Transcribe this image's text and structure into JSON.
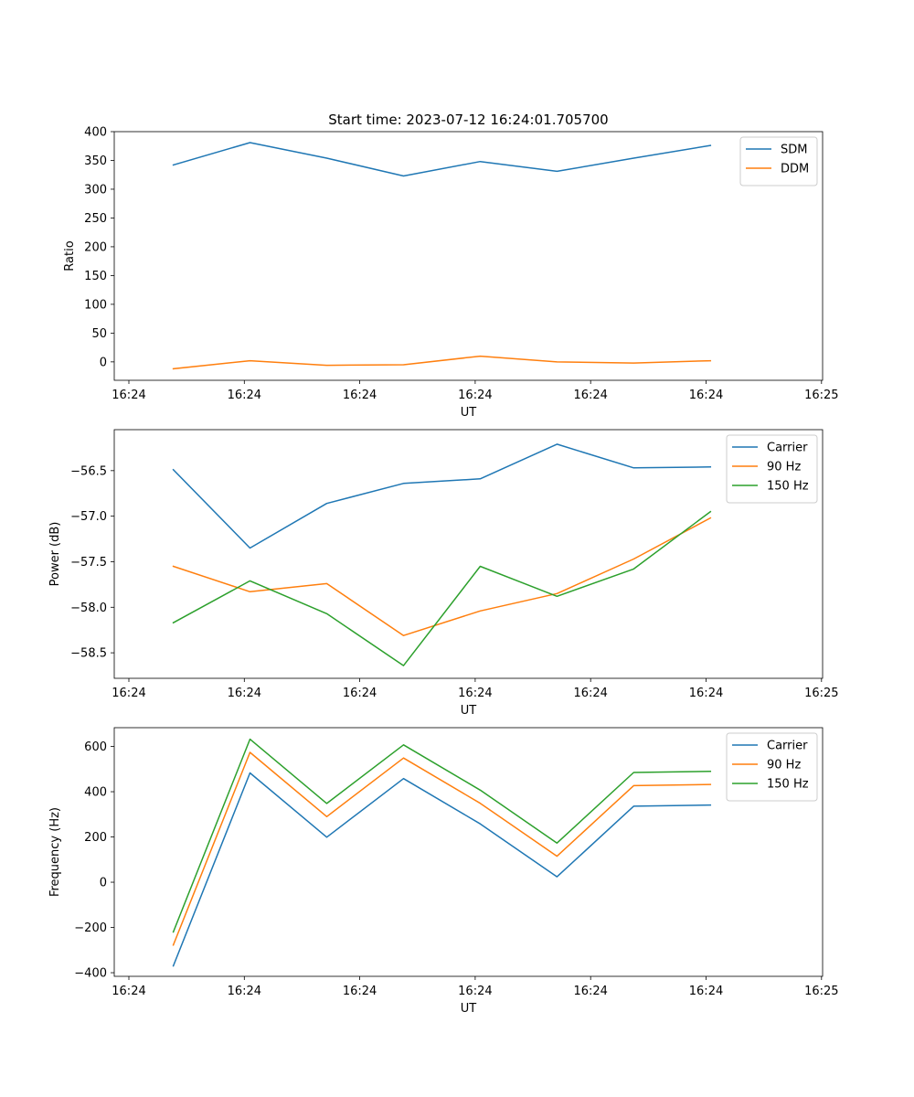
{
  "figure": {
    "title": "Start time: 2023-07-12 16:24:01.705700"
  },
  "chart_data": [
    {
      "type": "line",
      "ylabel": "Ratio",
      "xlabel": "UT",
      "x_ticks": [
        "16:24",
        "16:24",
        "16:24",
        "16:24",
        "16:24",
        "16:24",
        "16:25"
      ],
      "xlim": [
        -0.5,
        5.5
      ],
      "ylim": [
        -32,
        400
      ],
      "y_ticks": [
        0,
        50,
        100,
        150,
        200,
        250,
        300,
        350,
        400
      ],
      "y_tick_labels": [
        "0",
        "50",
        "100",
        "150",
        "200",
        "250",
        "300",
        "350",
        "400"
      ],
      "x": [
        0,
        0.65,
        1.3,
        1.95,
        2.6,
        3.25,
        3.9,
        4.55
      ],
      "series": [
        {
          "name": "SDM",
          "color": "#1f77b4",
          "values": [
            342,
            381,
            354,
            323,
            348,
            331,
            354,
            376
          ]
        },
        {
          "name": "DDM",
          "color": "#ff7f0e",
          "values": [
            -12,
            2,
            -6,
            -5,
            10,
            0,
            -2,
            2
          ]
        }
      ],
      "legend": "top-right"
    },
    {
      "type": "line",
      "ylabel": "Power (dB)",
      "xlabel": "UT",
      "x_ticks": [
        "16:24",
        "16:24",
        "16:24",
        "16:24",
        "16:24",
        "16:24",
        "16:25"
      ],
      "xlim": [
        -0.5,
        5.5
      ],
      "ylim": [
        -58.78,
        -56.05
      ],
      "y_ticks": [
        -58.5,
        -58.0,
        -57.5,
        -57.0,
        -56.5
      ],
      "y_tick_labels": [
        "−58.5",
        "−58.0",
        "−57.5",
        "−57.0",
        "−56.5"
      ],
      "x": [
        0,
        0.65,
        1.3,
        1.95,
        2.6,
        3.25,
        3.9,
        4.55
      ],
      "series": [
        {
          "name": "Carrier",
          "color": "#1f77b4",
          "values": [
            -56.49,
            -57.35,
            -56.86,
            -56.64,
            -56.59,
            -56.21,
            -56.47,
            -56.46
          ]
        },
        {
          "name": "90 Hz",
          "color": "#ff7f0e",
          "values": [
            -57.55,
            -57.83,
            -57.74,
            -58.31,
            -58.04,
            -57.85,
            -57.47,
            -57.02
          ]
        },
        {
          "name": "150 Hz",
          "color": "#2ca02c",
          "values": [
            -58.17,
            -57.71,
            -58.07,
            -58.64,
            -57.55,
            -57.88,
            -57.58,
            -56.95
          ]
        }
      ],
      "legend": "top-right"
    },
    {
      "type": "line",
      "ylabel": "Frequency (Hz)",
      "xlabel": "UT",
      "x_ticks": [
        "16:24",
        "16:24",
        "16:24",
        "16:24",
        "16:24",
        "16:24",
        "16:25"
      ],
      "xlim": [
        -0.5,
        5.5
      ],
      "ylim": [
        -416,
        683
      ],
      "y_ticks": [
        -400,
        -200,
        0,
        200,
        400,
        600
      ],
      "y_tick_labels": [
        "−400",
        "−200",
        "0",
        "200",
        "400",
        "600"
      ],
      "x": [
        0,
        0.65,
        1.3,
        1.95,
        2.6,
        3.25,
        3.9,
        4.55
      ],
      "series": [
        {
          "name": "Carrier",
          "color": "#1f77b4",
          "values": [
            -370,
            483,
            199,
            458,
            258,
            24,
            336,
            341
          ]
        },
        {
          "name": "90 Hz",
          "color": "#ff7f0e",
          "values": [
            -278,
            574,
            290,
            549,
            349,
            115,
            427,
            432
          ]
        },
        {
          "name": "150 Hz",
          "color": "#2ca02c",
          "values": [
            -220,
            632,
            348,
            607,
            407,
            173,
            485,
            490
          ]
        }
      ],
      "legend": "top-right"
    }
  ]
}
